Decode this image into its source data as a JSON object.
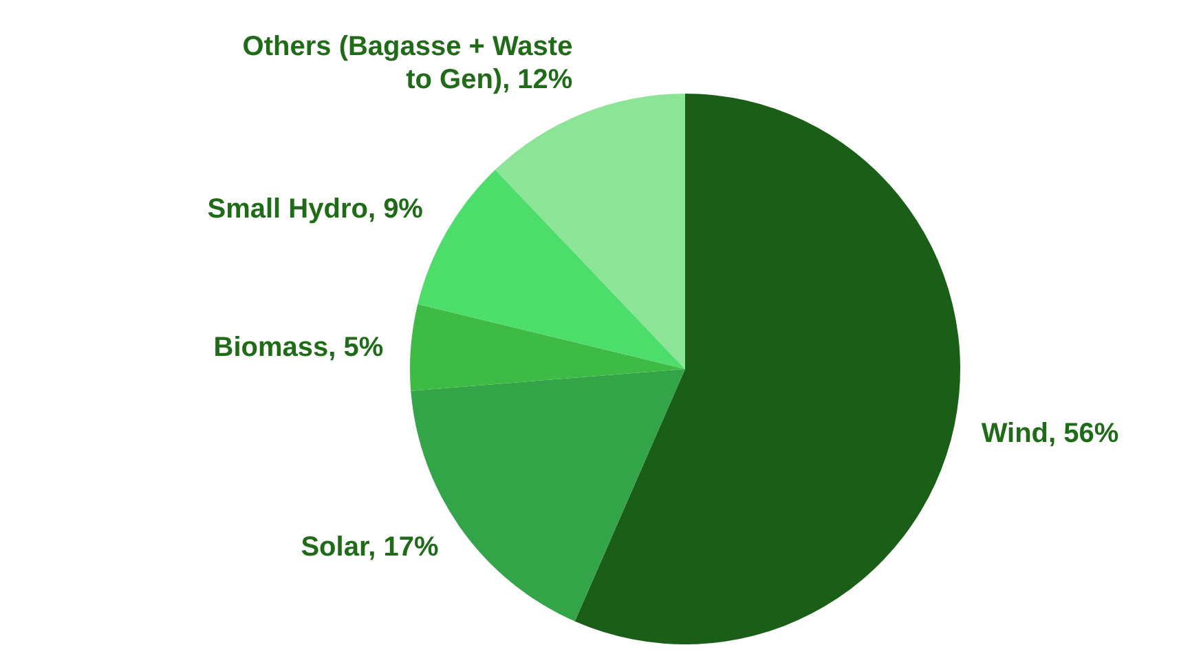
{
  "chart_data": {
    "type": "pie",
    "categories": [
      "Wind",
      "Solar",
      "Biomass",
      "Small Hydro",
      "Others (Bagasse + Waste to Gen)"
    ],
    "values": [
      56,
      17,
      5,
      9,
      12
    ],
    "value_labels": [
      "56%",
      "17%",
      "5%",
      "9%",
      "12%"
    ],
    "colors": [
      "#1a5e18",
      "#33a447",
      "#3dbb44",
      "#4cdd6a",
      "#8ce596"
    ]
  }
}
